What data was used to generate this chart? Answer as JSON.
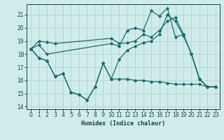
{
  "xlabel": "Humidex (Indice chaleur)",
  "xlim": [
    -0.5,
    23.5
  ],
  "ylim": [
    13.8,
    21.8
  ],
  "yticks": [
    14,
    15,
    16,
    17,
    18,
    19,
    20,
    21
  ],
  "xticks": [
    0,
    1,
    2,
    3,
    4,
    5,
    6,
    7,
    8,
    9,
    10,
    11,
    12,
    13,
    14,
    15,
    16,
    17,
    18,
    19,
    20,
    21,
    22,
    23
  ],
  "bg_color": "#d0ecea",
  "grid_color": "#aed4d0",
  "line_color": "#1a6b6b",
  "lines": [
    {
      "x": [
        0,
        1,
        2,
        3,
        10,
        11,
        12,
        13,
        14,
        15,
        16,
        17,
        18,
        19,
        20,
        21,
        22,
        23
      ],
      "y": [
        18.4,
        19.0,
        18.9,
        18.8,
        19.2,
        18.8,
        18.85,
        19.0,
        19.5,
        19.3,
        19.8,
        20.5,
        20.8,
        19.5,
        18.0,
        16.1,
        15.5,
        15.5
      ]
    },
    {
      "x": [
        0,
        1,
        2,
        10,
        11,
        12,
        13,
        14,
        15,
        16,
        17,
        18,
        19,
        20,
        21,
        22,
        23
      ],
      "y": [
        18.4,
        18.7,
        18.0,
        18.8,
        18.6,
        19.8,
        20.0,
        19.8,
        21.3,
        20.9,
        21.5,
        19.3,
        19.5,
        18.0,
        16.1,
        15.5,
        15.5
      ]
    },
    {
      "x": [
        0,
        1,
        2,
        3,
        4,
        5,
        6,
        7,
        8,
        9,
        10,
        11,
        12,
        13,
        14,
        15,
        16,
        17,
        18,
        19,
        20,
        21,
        22,
        23
      ],
      "y": [
        18.4,
        17.7,
        17.5,
        16.3,
        16.5,
        15.1,
        14.9,
        14.5,
        15.5,
        17.3,
        16.1,
        16.1,
        16.1,
        16.0,
        16.0,
        15.9,
        15.9,
        15.8,
        15.7,
        15.7,
        15.7,
        15.7,
        15.5,
        15.5
      ]
    },
    {
      "x": [
        0,
        1,
        2,
        3,
        4,
        5,
        6,
        7,
        8,
        9,
        10,
        11,
        12,
        13,
        14,
        15,
        16,
        17,
        18,
        19,
        20,
        21,
        22,
        23
      ],
      "y": [
        18.4,
        17.7,
        17.5,
        16.3,
        16.5,
        15.1,
        14.9,
        14.5,
        15.5,
        17.3,
        16.1,
        17.6,
        18.3,
        18.6,
        18.85,
        19.0,
        19.5,
        21.0,
        20.5,
        19.4,
        18.0,
        16.1,
        15.5,
        15.5
      ]
    }
  ]
}
